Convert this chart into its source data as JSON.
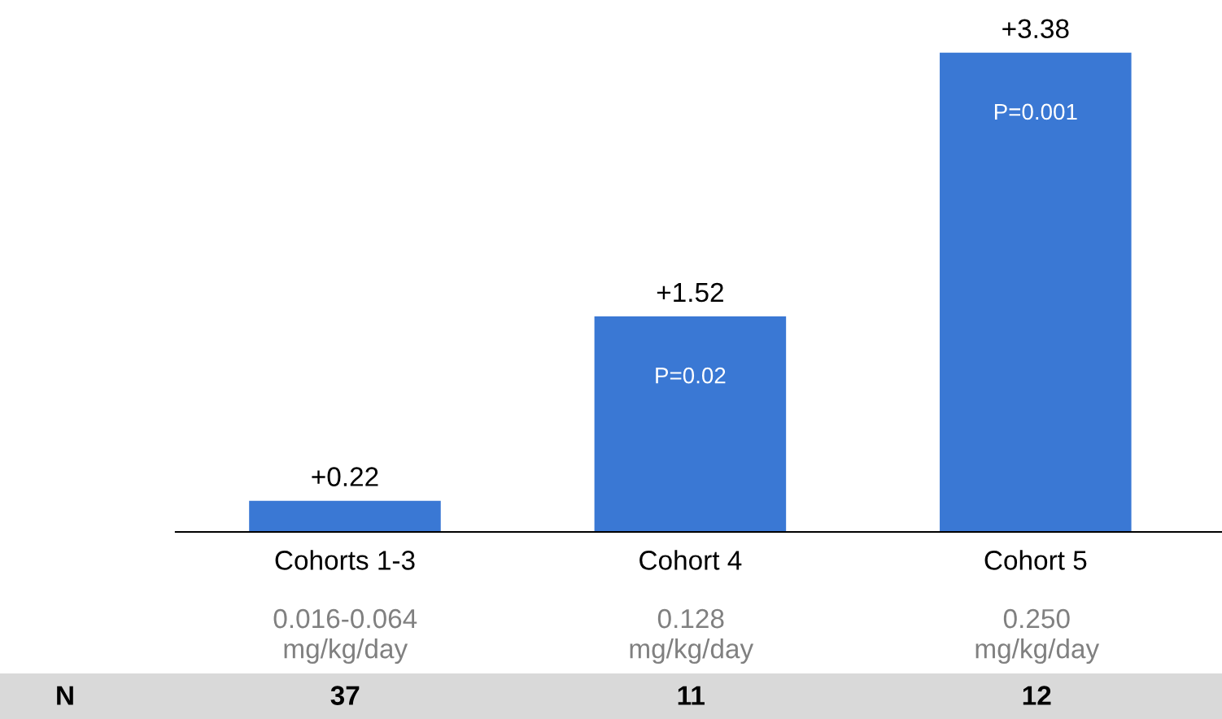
{
  "chart_data": {
    "type": "bar",
    "categories": [
      "Cohorts 1-3",
      "Cohort 4",
      "Cohort 5"
    ],
    "values": [
      0.22,
      1.52,
      3.38
    ],
    "value_labels": [
      "+0.22",
      "+1.52",
      "+3.38"
    ],
    "color": "#3a78d4",
    "tick_labels": "x",
    "annotations": [
      "P=0.02",
      "P=0.001",
      "0.016-0.064\nmg/kg/day",
      "0.128\nmg/kg/day",
      "0.250\nmg/kg/day",
      "N",
      "37",
      "11",
      "12"
    ]
  }
}
